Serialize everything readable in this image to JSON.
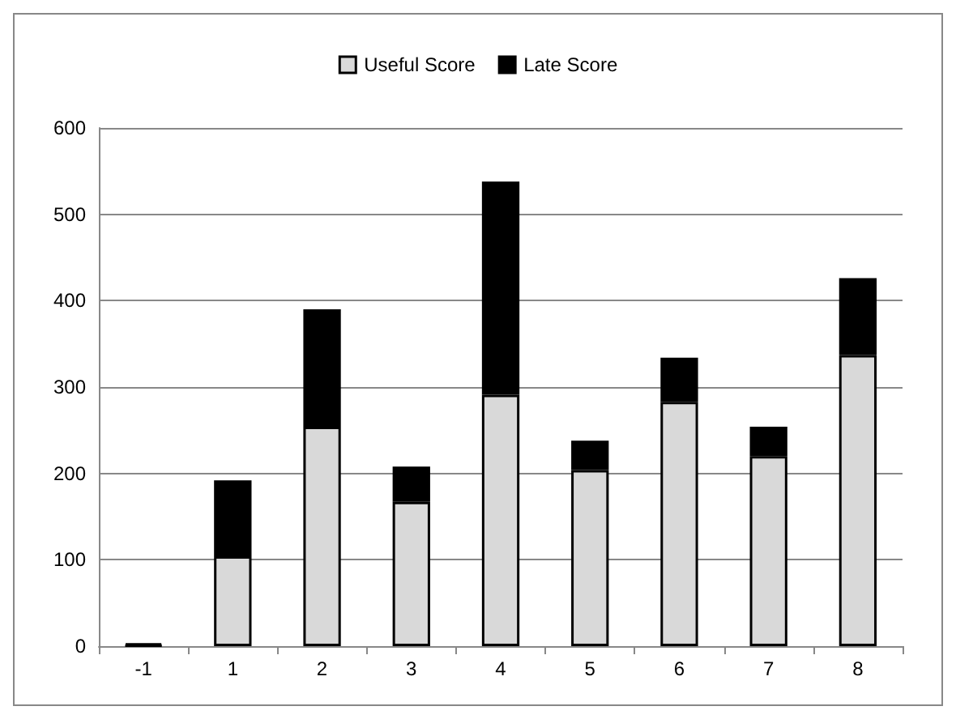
{
  "chart_data": {
    "type": "bar",
    "stacked": true,
    "categories": [
      "-1",
      "1",
      "2",
      "3",
      "4",
      "5",
      "6",
      "7",
      "8"
    ],
    "series": [
      {
        "name": "Useful Score",
        "color": "#d9d9d9",
        "values": [
          1,
          104,
          254,
          167,
          291,
          204,
          283,
          220,
          337
        ]
      },
      {
        "name": "Late Score",
        "color": "#000000",
        "values": [
          2,
          88,
          136,
          41,
          247,
          34,
          51,
          34,
          89
        ]
      }
    ],
    "ylim": [
      0,
      600
    ],
    "yticks": [
      0,
      100,
      200,
      300,
      400,
      500,
      600
    ],
    "grid": "y",
    "legend": "top"
  }
}
